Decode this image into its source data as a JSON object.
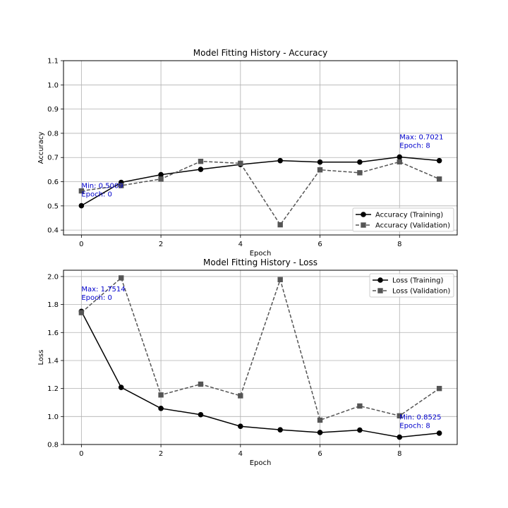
{
  "chart_data": [
    {
      "type": "line",
      "title": "Model Fitting History - Accuracy",
      "xlabel": "Epoch",
      "ylabel": "Accuracy",
      "xlim": [
        -0.45,
        9.45
      ],
      "ylim": [
        0.38,
        1.1
      ],
      "xticks": [
        0,
        2,
        4,
        6,
        8
      ],
      "xtick_labels": [
        "0",
        "2",
        "4",
        "6",
        "8"
      ],
      "yticks": [
        0.4,
        0.5,
        0.6,
        0.7,
        0.8,
        0.9,
        1.0,
        1.1
      ],
      "ytick_labels": [
        "0.4",
        "0.5",
        "0.6",
        "0.7",
        "0.8",
        "0.9",
        "1.0",
        "1.1"
      ],
      "grid": true,
      "legend_position": "lower-right",
      "x": [
        0,
        1,
        2,
        3,
        4,
        5,
        6,
        7,
        8,
        9
      ],
      "series": [
        {
          "name": "Accuracy (Training)",
          "marker": "circle",
          "linestyle": "solid",
          "color": "#000000",
          "values": [
            0.5009,
            0.597,
            0.629,
            0.651,
            0.671,
            0.687,
            0.681,
            0.681,
            0.7021,
            0.687
          ]
        },
        {
          "name": "Accuracy (Validation)",
          "marker": "square",
          "linestyle": "dashed",
          "color": "#555555",
          "values": [
            0.562,
            0.584,
            0.611,
            0.684,
            0.676,
            0.422,
            0.649,
            0.637,
            0.682,
            0.611
          ]
        }
      ],
      "annotations": [
        {
          "x": 0,
          "y": 0.5009,
          "line1": "Min: 0.5009",
          "line2": "Epoch: 0",
          "color": "#0000cc"
        },
        {
          "x": 8,
          "y": 0.7021,
          "line1": "Max: 0.7021",
          "line2": "Epoch: 8",
          "color": "#0000cc"
        }
      ]
    },
    {
      "type": "line",
      "title": "Model Fitting History - Loss",
      "xlabel": "Epoch",
      "ylabel": "Loss",
      "xlim": [
        -0.45,
        9.45
      ],
      "ylim": [
        0.8,
        2.045
      ],
      "xticks": [
        0,
        2,
        4,
        6,
        8
      ],
      "xtick_labels": [
        "0",
        "2",
        "4",
        "6",
        "8"
      ],
      "yticks": [
        0.8,
        1.0,
        1.2,
        1.4,
        1.6,
        1.8,
        2.0
      ],
      "ytick_labels": [
        "0.8",
        "1.0",
        "1.2",
        "1.4",
        "1.6",
        "1.8",
        "2.0"
      ],
      "grid": true,
      "legend_position": "upper-right",
      "x": [
        0,
        1,
        2,
        3,
        4,
        5,
        6,
        7,
        8,
        9
      ],
      "series": [
        {
          "name": "Loss (Training)",
          "marker": "circle",
          "linestyle": "solid",
          "color": "#000000",
          "values": [
            1.7514,
            1.208,
            1.058,
            1.013,
            0.93,
            0.905,
            0.886,
            0.903,
            0.8525,
            0.881
          ]
        },
        {
          "name": "Loss (Validation)",
          "marker": "square",
          "linestyle": "dashed",
          "color": "#555555",
          "values": [
            1.742,
            1.99,
            1.154,
            1.231,
            1.148,
            1.978,
            0.974,
            1.075,
            1.005,
            1.2
          ]
        }
      ],
      "annotations": [
        {
          "x": 0,
          "y": 1.7514,
          "line1": "Max: 1.7514",
          "line2": "Epoch: 0",
          "color": "#0000cc"
        },
        {
          "x": 8,
          "y": 0.8525,
          "line1": "Min: 0.8525",
          "line2": "Epoch: 8",
          "color": "#0000cc"
        }
      ]
    }
  ]
}
